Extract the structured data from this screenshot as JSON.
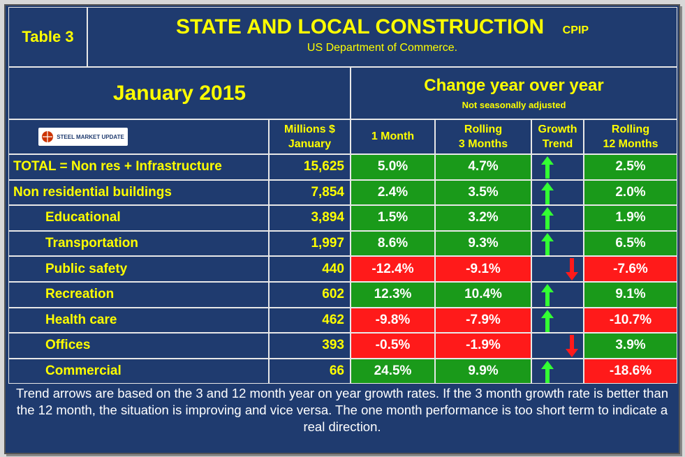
{
  "header": {
    "table_label": "Table 3",
    "title": "STATE AND LOCAL CONSTRUCTION",
    "tag": "CPIP",
    "source": "US Department of Commerce."
  },
  "period": "January 2015",
  "change_header": "Change year over year",
  "seasonal_note": "Not seasonally adjusted",
  "logo_text": "STEEL MARKET UPDATE",
  "columns": {
    "millions_line1": "Millions $",
    "millions_line2": "January",
    "one_month": "1 Month",
    "rolling3_line1": "Rolling",
    "rolling3_line2": "3 Months",
    "growth_line1": "Growth",
    "growth_line2": "Trend",
    "rolling12_line1": "Rolling",
    "rolling12_line2": "12 Months"
  },
  "rows": [
    {
      "label": "TOTAL = Non res + Infrastructure",
      "millions": "15,625",
      "m1": "5.0%",
      "m3": "4.7%",
      "trend": "up",
      "m12": "2.5%"
    },
    {
      "label": "Non residential buildings",
      "millions": "7,854",
      "m1": "2.4%",
      "m3": "3.5%",
      "trend": "up",
      "m12": "2.0%"
    },
    {
      "label": "Educational",
      "millions": "3,894",
      "m1": "1.5%",
      "m3": "3.2%",
      "trend": "up",
      "m12": "1.9%"
    },
    {
      "label": "Transportation",
      "millions": "1,997",
      "m1": "8.6%",
      "m3": "9.3%",
      "trend": "up",
      "m12": "6.5%"
    },
    {
      "label": "Public safety",
      "millions": "440",
      "m1": "-12.4%",
      "m3": "-9.1%",
      "trend": "down",
      "m12": "-7.6%"
    },
    {
      "label": "Recreation",
      "millions": "602",
      "m1": "12.3%",
      "m3": "10.4%",
      "trend": "up",
      "m12": "9.1%"
    },
    {
      "label": "Health care",
      "millions": "462",
      "m1": "-9.8%",
      "m3": "-7.9%",
      "trend": "up",
      "m12": "-10.7%"
    },
    {
      "label": "Offices",
      "millions": "393",
      "m1": "-0.5%",
      "m3": "-1.9%",
      "trend": "down",
      "m12": "3.9%"
    },
    {
      "label": "Commercial",
      "millions": "66",
      "m1": "24.5%",
      "m3": "9.9%",
      "trend": "up",
      "m12": "-18.6%"
    }
  ],
  "footnote": "Trend arrows are based on the 3 and 12 month year on year growth rates. If the 3 month growth rate is better than the 12 month, the situation is improving and vice versa. The one month performance is too short term to indicate a real direction.",
  "colors": {
    "positive": "#1a9a1a",
    "negative": "#ff1a1a",
    "up_arrow": "#33ff33",
    "down_arrow": "#ff1a1a",
    "text": "#ffff00"
  }
}
